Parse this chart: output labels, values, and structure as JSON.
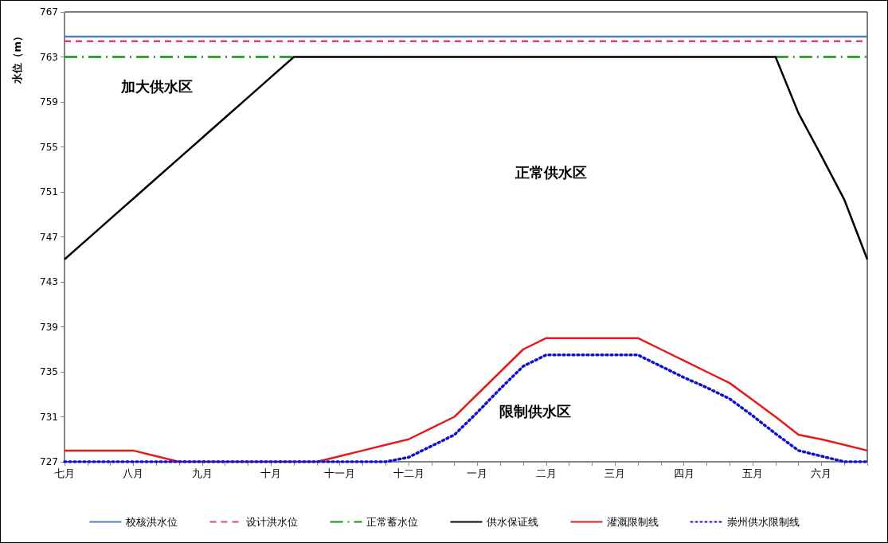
{
  "chart_data": {
    "type": "line",
    "ylabel": "水位（m）",
    "categories": [
      "七月",
      null,
      null,
      "八月",
      null,
      null,
      "九月",
      null,
      null,
      "十月",
      null,
      null,
      "十一月",
      null,
      null,
      "十二月",
      null,
      null,
      "一月",
      null,
      null,
      "二月",
      null,
      null,
      "三月",
      null,
      null,
      "四月",
      null,
      null,
      "五月",
      null,
      null,
      "六月",
      null,
      null
    ],
    "ylim": [
      727,
      767
    ],
    "yticks": [
      727,
      731,
      735,
      739,
      743,
      747,
      751,
      755,
      759,
      763,
      767
    ],
    "grid": false,
    "legend": "bottom",
    "marker": "none",
    "annotations": [
      "加大供水区",
      "正常供水区",
      "限制供水区"
    ],
    "series": [
      {
        "name": "校核洪水位",
        "color": "#4f81bd",
        "line_style": "solid",
        "values": [
          764.8,
          764.8,
          764.8,
          764.8,
          764.8,
          764.8,
          764.8,
          764.8,
          764.8,
          764.8,
          764.8,
          764.8,
          764.8,
          764.8,
          764.8,
          764.8,
          764.8,
          764.8,
          764.8,
          764.8,
          764.8,
          764.8,
          764.8,
          764.8,
          764.8,
          764.8,
          764.8,
          764.8,
          764.8,
          764.8,
          764.8,
          764.8,
          764.8,
          764.8,
          764.8,
          764.8
        ]
      },
      {
        "name": "设计洪水位",
        "color": "#e8388a",
        "line_style": "dashed",
        "values": [
          764.4,
          764.4,
          764.4,
          764.4,
          764.4,
          764.4,
          764.4,
          764.4,
          764.4,
          764.4,
          764.4,
          764.4,
          764.4,
          764.4,
          764.4,
          764.4,
          764.4,
          764.4,
          764.4,
          764.4,
          764.4,
          764.4,
          764.4,
          764.4,
          764.4,
          764.4,
          764.4,
          764.4,
          764.4,
          764.4,
          764.4,
          764.4,
          764.4,
          764.4,
          764.4,
          764.4
        ]
      },
      {
        "name": "正常蓄水位",
        "color": "#13900f",
        "line_style": "dashdot",
        "values": [
          763,
          763,
          763,
          763,
          763,
          763,
          763,
          763,
          763,
          763,
          763,
          null,
          null,
          null,
          null,
          null,
          null,
          null,
          null,
          null,
          null,
          null,
          null,
          null,
          null,
          null,
          null,
          null,
          null,
          null,
          null,
          763,
          763,
          763,
          763,
          763
        ]
      },
      {
        "name": "供水保证线",
        "color": "#000000",
        "line_style": "solid",
        "values": [
          745,
          746.8,
          748.6,
          750.4,
          752.2,
          754,
          755.8,
          757.6,
          759.4,
          761.2,
          763,
          763,
          763,
          763,
          763,
          763,
          763,
          763,
          763,
          763,
          763,
          763,
          763,
          763,
          763,
          763,
          763,
          763,
          763,
          763,
          763,
          763,
          758,
          754.2,
          750.3,
          745
        ]
      },
      {
        "name": "灌溉限制线",
        "color": "#e41b17",
        "line_style": "solid",
        "values": [
          728,
          728,
          728,
          728,
          727.5,
          727,
          727,
          727,
          727,
          727,
          727,
          727,
          727.5,
          728,
          728.5,
          729,
          730,
          731,
          733,
          735,
          737,
          738,
          738,
          738,
          738,
          738,
          737,
          736,
          735,
          734,
          732.5,
          731,
          729.4,
          729,
          728.5,
          728
        ]
      },
      {
        "name": "崇州供水限制线",
        "color": "#1010d0",
        "line_style": "dotted",
        "values": [
          727,
          727,
          727,
          727,
          727,
          727,
          727,
          727,
          727,
          727,
          727,
          727,
          727,
          727,
          727,
          727.4,
          728.4,
          729.4,
          731.4,
          733.5,
          735.5,
          736.5,
          736.5,
          736.5,
          736.5,
          736.5,
          735.5,
          734.5,
          733.6,
          732.6,
          731.1,
          729.5,
          728,
          727.5,
          727,
          727
        ]
      }
    ]
  }
}
